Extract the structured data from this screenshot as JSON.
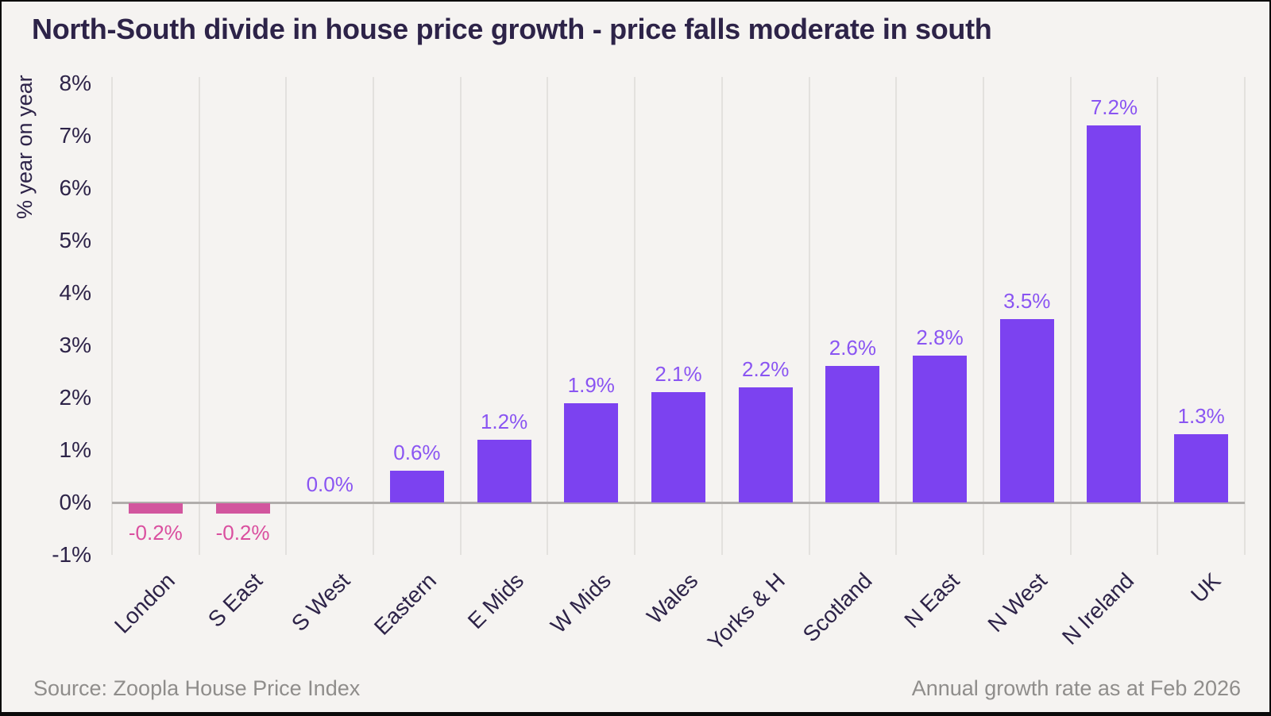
{
  "title": "North-South divide in house price growth - price falls moderate in south",
  "footer": {
    "source": "Source: Zoopla House Price Index",
    "note": "Annual growth rate as at Feb 2026"
  },
  "colors": {
    "background": "#f5f3f1",
    "dark_text": "#2d2348",
    "positive_bar": "#7c42f0",
    "positive_label": "#8a55f2",
    "negative_bar": "#d2569e",
    "negative_label": "#da4f9f",
    "gridline": "#e3e1de",
    "zero_line": "#b1aeac",
    "footer_text": "#8f8d8b"
  },
  "chart_data": {
    "type": "bar",
    "title": "North-South divide in house price growth - price falls moderate in south",
    "xlabel": "",
    "ylabel": "% year on year",
    "categories": [
      "London",
      "S East",
      "S West",
      "Eastern",
      "E Mids",
      "W Mids",
      "Wales",
      "Yorks & H",
      "Scotland",
      "N East",
      "N West",
      "N Ireland",
      "UK"
    ],
    "values": [
      -0.2,
      -0.2,
      0.0,
      0.6,
      1.2,
      1.9,
      2.1,
      2.2,
      2.6,
      2.8,
      3.5,
      7.2,
      1.3
    ],
    "value_labels": [
      "-0.2%",
      "-0.2%",
      "0.0%",
      "0.6%",
      "1.2%",
      "1.9%",
      "2.1%",
      "2.2%",
      "2.6%",
      "2.8%",
      "3.5%",
      "7.2%",
      "1.3%"
    ],
    "ylim": [
      -1,
      8.12
    ],
    "ytick_values": [
      8,
      7,
      6,
      5,
      4,
      3,
      2,
      1,
      0,
      -1
    ],
    "ytick_labels": [
      "8%",
      "7%",
      "6%",
      "5%",
      "4%",
      "3%",
      "2%",
      "1%",
      "0%",
      "-1%"
    ],
    "grid": "vertical-only",
    "legend": "none",
    "annotation": "Annual growth rate as at Feb 2026",
    "source": "Source: Zoopla House Price Index"
  }
}
